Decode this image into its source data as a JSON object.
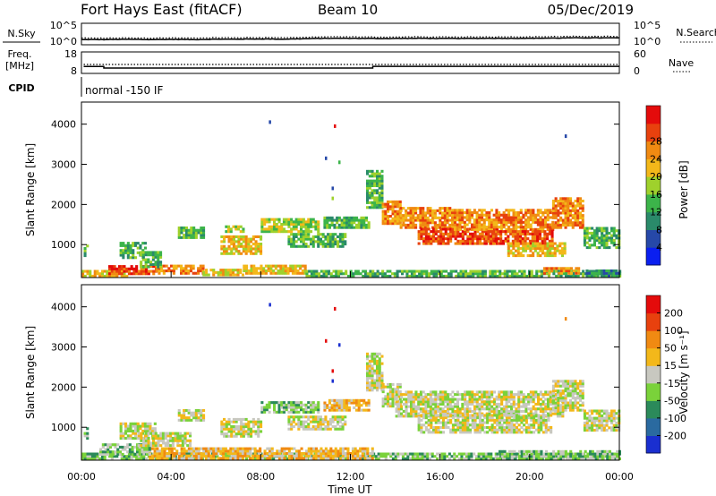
{
  "header": {
    "station": "Fort Hays East (fitACF)",
    "beam": "Beam 10",
    "date": "05/Dec/2019"
  },
  "noise_panel": {
    "left_label": "N.Sky",
    "right_label": "N.Search",
    "right_line_style": "dotted",
    "tick_top": "10^5",
    "tick_bottom": "10^0",
    "sky_level": [
      1.2,
      1.2,
      1.25,
      1.2,
      1.25,
      1.2,
      1.3,
      1.3,
      1.35,
      1.3,
      1.4,
      1.5,
      1.5,
      1.45,
      1.45,
      1.5,
      1.45,
      1.45,
      1.5,
      1.5,
      1.5,
      1.55,
      1.6,
      1.6,
      1.6
    ]
  },
  "freq_panel": {
    "label_line1": "Freq.",
    "label_line2": "[MHz]",
    "tick_top": "18",
    "tick_bottom": "8",
    "right_label": "Nave",
    "right_line_style": "dotted",
    "right_tick_top": "60",
    "right_tick_bottom": "0",
    "freq_steps": [
      {
        "t_start": 0.1,
        "t_end": 1.0,
        "mhz": 11.2
      },
      {
        "t_start": 1.0,
        "t_end": 13.0,
        "mhz": 10.5
      },
      {
        "t_start": 13.0,
        "t_end": 24.0,
        "mhz": 11.3
      }
    ],
    "nave": 25
  },
  "cpid": {
    "label": "CPID",
    "mode_text": "normal -150 IF"
  },
  "colorbars": {
    "power": {
      "title": "Power [dB]",
      "ticks": [
        "4",
        "8",
        "12",
        "16",
        "20",
        "24",
        "28"
      ],
      "colors": [
        "#0a1ff0",
        "#2648a8",
        "#2a8a6a",
        "#3cb44a",
        "#9fd12c",
        "#f3b81a",
        "#f08a12",
        "#e8410e",
        "#e40b0b"
      ]
    },
    "velocity": {
      "title": "Velocity [m s⁻¹]",
      "ticks": [
        "200",
        "100",
        "50",
        "15",
        "-15",
        "-50",
        "-100",
        "-200"
      ],
      "colors": [
        "#1a2fd0",
        "#2a6aa0",
        "#2b8a5a",
        "#7ad23a",
        "#c8c8c0",
        "#f3b81a",
        "#f08a12",
        "#e8410e",
        "#e40b0b"
      ]
    }
  },
  "chart_data": [
    {
      "type": "heatmap",
      "panel": "power",
      "ylabel": "Slant Range [km]",
      "yticks": [
        1000,
        2000,
        3000,
        4000
      ],
      "ylim": [
        180,
        4550
      ],
      "xlim": [
        0,
        24
      ],
      "regions": [
        {
          "t0": 0.0,
          "t1": 2.0,
          "r0": 190,
          "r1": 330,
          "level": 5
        },
        {
          "t0": 1.2,
          "t1": 3.3,
          "r0": 250,
          "r1": 470,
          "level": 7
        },
        {
          "t0": 3.3,
          "t1": 5.4,
          "r0": 260,
          "r1": 470,
          "level": 6
        },
        {
          "t0": 5.4,
          "t1": 7.2,
          "r0": 220,
          "r1": 400,
          "level": 5
        },
        {
          "t0": 7.2,
          "t1": 10.0,
          "r0": 260,
          "r1": 470,
          "level": 5
        },
        {
          "t0": 0.1,
          "t1": 0.3,
          "r0": 700,
          "r1": 1000,
          "level": 3
        },
        {
          "t0": 1.7,
          "t1": 2.8,
          "r0": 650,
          "r1": 1050,
          "level": 3
        },
        {
          "t0": 2.6,
          "t1": 3.5,
          "r0": 420,
          "r1": 820,
          "level": 3
        },
        {
          "t0": 4.3,
          "t1": 5.4,
          "r0": 1150,
          "r1": 1400,
          "level": 3
        },
        {
          "t0": 6.4,
          "t1": 7.2,
          "r0": 1300,
          "r1": 1460,
          "level": 4
        },
        {
          "t0": 6.2,
          "t1": 8.0,
          "r0": 750,
          "r1": 1200,
          "level": 5
        },
        {
          "t0": 8.0,
          "t1": 10.6,
          "r0": 1300,
          "r1": 1650,
          "level": 4
        },
        {
          "t0": 9.2,
          "t1": 11.8,
          "r0": 930,
          "r1": 1280,
          "level": 3
        },
        {
          "t0": 10.8,
          "t1": 12.8,
          "r0": 1400,
          "r1": 1700,
          "level": 3
        },
        {
          "t0": 12.7,
          "t1": 13.4,
          "r0": 1900,
          "r1": 2850,
          "level": 3
        },
        {
          "t0": 13.4,
          "t1": 14.2,
          "r0": 1500,
          "r1": 2100,
          "level": 6
        },
        {
          "t0": 14.2,
          "t1": 16.5,
          "r0": 1400,
          "r1": 1900,
          "level": 6
        },
        {
          "t0": 15.0,
          "t1": 18.5,
          "r0": 1000,
          "r1": 1400,
          "level": 7
        },
        {
          "t0": 16.5,
          "t1": 21.0,
          "r0": 1350,
          "r1": 1850,
          "level": 6
        },
        {
          "t0": 18.0,
          "t1": 21.0,
          "r0": 1000,
          "r1": 1350,
          "level": 7
        },
        {
          "t0": 19.0,
          "t1": 21.6,
          "r0": 700,
          "r1": 1050,
          "level": 5
        },
        {
          "t0": 21.0,
          "t1": 22.4,
          "r0": 1400,
          "r1": 2150,
          "level": 6
        },
        {
          "t0": 22.4,
          "t1": 24.0,
          "r0": 900,
          "r1": 1400,
          "level": 3
        },
        {
          "t0": 10.0,
          "t1": 24.0,
          "r0": 190,
          "r1": 330,
          "level": 3
        },
        {
          "t0": 20.6,
          "t1": 22.2,
          "r0": 260,
          "r1": 420,
          "level": 6
        },
        {
          "t0": 22.5,
          "t1": 24.0,
          "r0": 200,
          "r1": 330,
          "level": 2
        }
      ],
      "points": [
        {
          "t": 8.4,
          "r": 4050,
          "level": 1
        },
        {
          "t": 11.3,
          "r": 3950,
          "level": 8
        },
        {
          "t": 10.9,
          "r": 3150,
          "level": 1
        },
        {
          "t": 11.5,
          "r": 3050,
          "level": 3
        },
        {
          "t": 21.6,
          "r": 3700,
          "level": 1
        },
        {
          "t": 11.2,
          "r": 2150,
          "level": 4
        },
        {
          "t": 11.2,
          "r": 2400,
          "level": 1
        }
      ]
    },
    {
      "type": "heatmap",
      "panel": "velocity",
      "ylabel": "Slant Range [km]",
      "xlabel": "Time UT",
      "xticks": [
        "00:00",
        "04:00",
        "08:00",
        "12:00",
        "16:00",
        "20:00",
        "00:00"
      ],
      "yticks": [
        1000,
        2000,
        3000,
        4000
      ],
      "ylim": [
        180,
        4550
      ],
      "xlim": [
        0,
        24
      ],
      "regions": [
        {
          "t0": 0.0,
          "t1": 24.0,
          "r0": 190,
          "r1": 330,
          "level": 3
        },
        {
          "t0": 3.0,
          "t1": 13.0,
          "r0": 200,
          "r1": 500,
          "level": 5
        },
        {
          "t0": 0.8,
          "t1": 3.0,
          "r0": 300,
          "r1": 550,
          "level": 3
        },
        {
          "t0": 0.1,
          "t1": 0.3,
          "r0": 700,
          "r1": 1000,
          "level": 3
        },
        {
          "t0": 1.7,
          "t1": 3.3,
          "r0": 700,
          "r1": 1100,
          "level": 4
        },
        {
          "t0": 2.5,
          "t1": 4.8,
          "r0": 520,
          "r1": 850,
          "level": 4
        },
        {
          "t0": 4.3,
          "t1": 5.4,
          "r0": 1150,
          "r1": 1400,
          "level": 4
        },
        {
          "t0": 6.2,
          "t1": 8.0,
          "r0": 750,
          "r1": 1200,
          "level": 4
        },
        {
          "t0": 8.0,
          "t1": 10.6,
          "r0": 1350,
          "r1": 1650,
          "level": 3
        },
        {
          "t0": 9.2,
          "t1": 11.8,
          "r0": 930,
          "r1": 1280,
          "level": 4
        },
        {
          "t0": 10.8,
          "t1": 12.8,
          "r0": 1400,
          "r1": 1700,
          "level": 5
        },
        {
          "t0": 12.7,
          "t1": 13.4,
          "r0": 1900,
          "r1": 2850,
          "level": 4
        },
        {
          "t0": 13.4,
          "t1": 14.2,
          "r0": 1500,
          "r1": 2100,
          "level": 4
        },
        {
          "t0": 14.0,
          "t1": 21.5,
          "r0": 1250,
          "r1": 1900,
          "level": 4
        },
        {
          "t0": 15.0,
          "t1": 21.0,
          "r0": 850,
          "r1": 1300,
          "level": 4
        },
        {
          "t0": 21.0,
          "t1": 22.4,
          "r0": 1400,
          "r1": 2150,
          "level": 4
        },
        {
          "t0": 22.4,
          "t1": 24.0,
          "r0": 900,
          "r1": 1400,
          "level": 4
        },
        {
          "t0": 18.5,
          "t1": 24.0,
          "r0": 190,
          "r1": 420,
          "level": 3
        }
      ],
      "points": [
        {
          "t": 8.4,
          "r": 4050,
          "level": 0
        },
        {
          "t": 11.3,
          "r": 3950,
          "level": 8
        },
        {
          "t": 10.9,
          "r": 3150,
          "level": 8
        },
        {
          "t": 11.5,
          "r": 3050,
          "level": 0
        },
        {
          "t": 21.6,
          "r": 3700,
          "level": 6
        },
        {
          "t": 11.2,
          "r": 2150,
          "level": 0
        },
        {
          "t": 11.2,
          "r": 2400,
          "level": 8
        }
      ]
    }
  ]
}
